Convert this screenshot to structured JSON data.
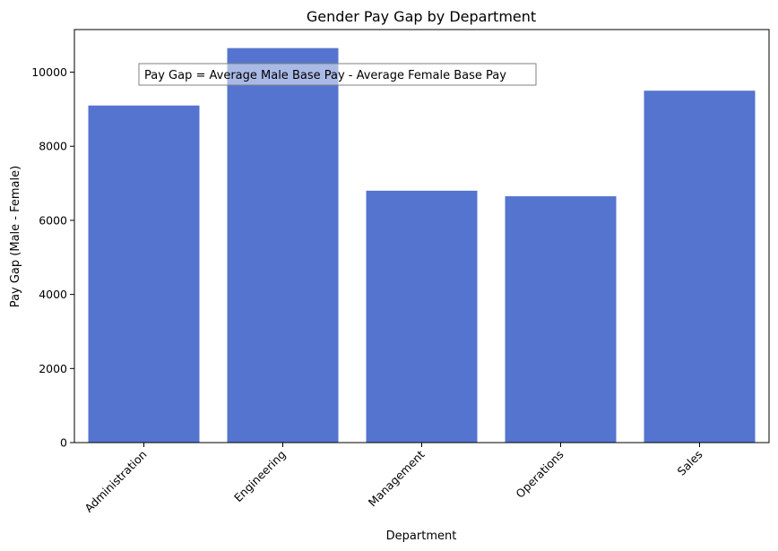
{
  "chart_data": {
    "type": "bar",
    "title": "Gender Pay Gap by Department",
    "xlabel": "Department",
    "ylabel": "Pay Gap (Male - Female)",
    "categories": [
      "Administration",
      "Engineering",
      "Management",
      "Operations",
      "Sales"
    ],
    "values": [
      9100,
      10650,
      6800,
      6650,
      9500
    ],
    "ylim": [
      0,
      11150
    ],
    "yticks": [
      0,
      2000,
      4000,
      6000,
      8000,
      10000
    ],
    "bar_color": "#5574cf",
    "grid": false,
    "annotation": "Pay Gap = Average Male Base Pay - Average Female Base Pay",
    "xtick_rotation": 45
  }
}
